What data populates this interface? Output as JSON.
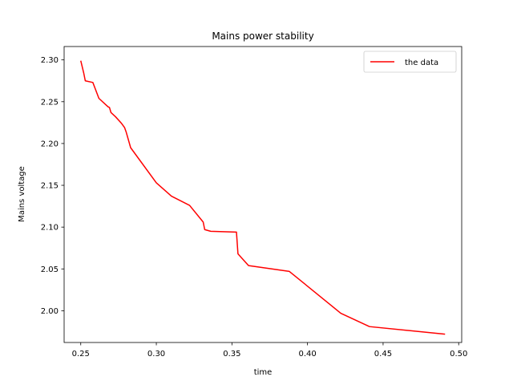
{
  "chart_data": {
    "type": "line",
    "title": "Mains power stability",
    "xlabel": "time",
    "ylabel": "Mains voltage",
    "xlim": [
      0.239,
      0.502
    ],
    "ylim": [
      1.962,
      2.316
    ],
    "xticks": [
      0.25,
      0.3,
      0.35,
      0.4,
      0.45,
      0.5
    ],
    "xtick_labels": [
      "0.25",
      "0.30",
      "0.35",
      "0.40",
      "0.45",
      "0.50"
    ],
    "yticks": [
      2.0,
      2.05,
      2.1,
      2.15,
      2.2,
      2.25,
      2.3
    ],
    "ytick_labels": [
      "2.00",
      "2.05",
      "2.10",
      "2.15",
      "2.20",
      "2.25",
      "2.30"
    ],
    "grid": false,
    "legend": {
      "position": "top-right"
    },
    "series": [
      {
        "name": "the data",
        "color": "#ff0000",
        "x": [
          0.25,
          0.252,
          0.253,
          0.258,
          0.262,
          0.268,
          0.269,
          0.27,
          0.273,
          0.277,
          0.279,
          0.28,
          0.283,
          0.3,
          0.31,
          0.322,
          0.331,
          0.332,
          0.336,
          0.353,
          0.354,
          0.361,
          0.388,
          0.422,
          0.441,
          0.491
        ],
        "y": [
          2.299,
          2.284,
          2.275,
          2.273,
          2.254,
          2.244,
          2.243,
          2.237,
          2.232,
          2.224,
          2.219,
          2.214,
          2.195,
          2.153,
          2.137,
          2.126,
          2.106,
          2.097,
          2.095,
          2.094,
          2.068,
          2.054,
          2.047,
          1.997,
          1.981,
          1.972
        ]
      }
    ]
  }
}
